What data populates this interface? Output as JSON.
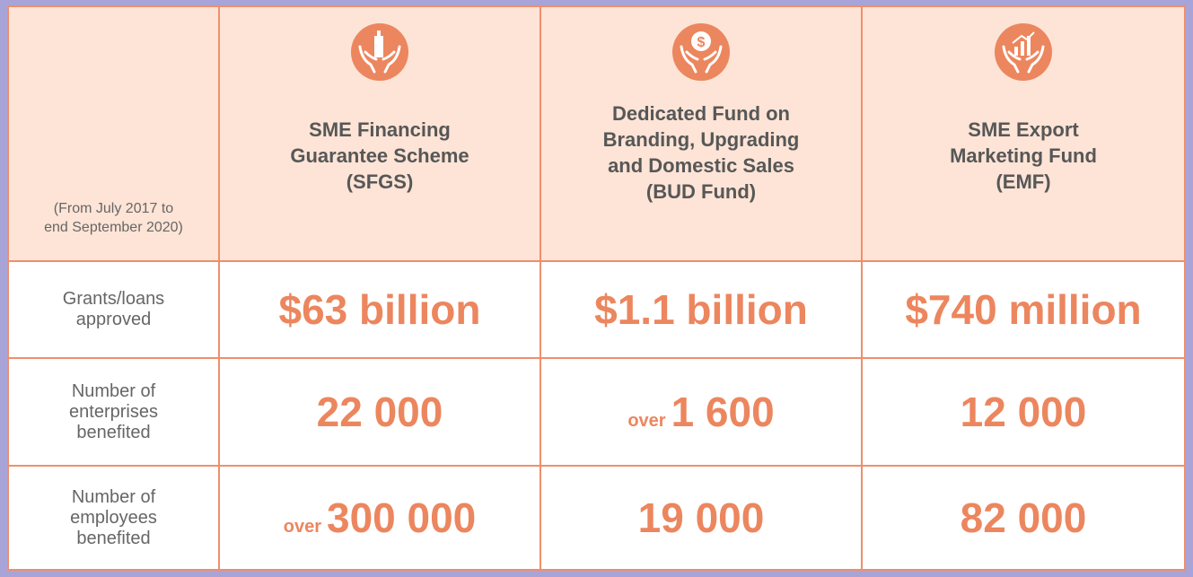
{
  "header": {
    "note": [
      "(From July 2017 to",
      "end September 2020)"
    ],
    "columns": [
      {
        "title": [
          "SME Financing",
          "Guarantee Scheme",
          "(SFGS)"
        ]
      },
      {
        "title": [
          "Dedicated Fund on",
          "Branding, Upgrading",
          "and Domestic Sales",
          "(BUD Fund)"
        ]
      },
      {
        "title": [
          "SME Export",
          "Marketing Fund",
          "(EMF)"
        ]
      }
    ]
  },
  "table": {
    "rows": [
      {
        "label": [
          "Grants/loans",
          "approved"
        ],
        "cells": [
          {
            "value": "$63 billion"
          },
          {
            "value": "$1.1 billion"
          },
          {
            "value": "$740 million"
          }
        ]
      },
      {
        "label": [
          "Number of",
          "enterprises",
          "benefited"
        ],
        "cells": [
          {
            "value": "22 000"
          },
          {
            "prefix": "over",
            "value": "1 600"
          },
          {
            "value": "12 000"
          }
        ]
      },
      {
        "label": [
          "Number of",
          "employees",
          "benefited"
        ],
        "cells": [
          {
            "prefix": "over",
            "value": "300 000"
          },
          {
            "value": "19 000"
          },
          {
            "value": "82 000"
          }
        ]
      }
    ]
  }
}
